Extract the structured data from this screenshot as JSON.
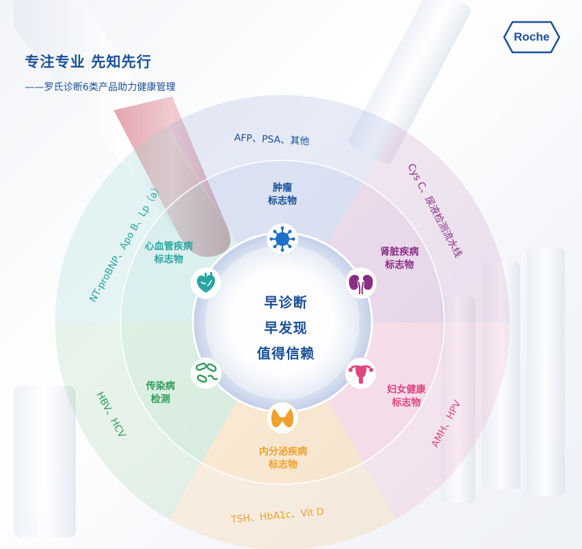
{
  "header": {
    "title": "专注专业 先知先行",
    "subtitle": "——罗氏诊断6类产品助力健康管理"
  },
  "logo": {
    "text": "Roche",
    "color": "#1a4f96"
  },
  "center": {
    "lines": [
      "早诊断",
      "早发现",
      "值得信赖"
    ],
    "color": "#1a4f96"
  },
  "categories": [
    {
      "line1": "肿瘤",
      "line2": "标志物",
      "color": "#1a4f96",
      "icon": "virus-icon"
    },
    {
      "line1": "肾脏疾病",
      "line2": "标志物",
      "color": "#8a2e84",
      "icon": "kidney-icon"
    },
    {
      "line1": "妇女健康",
      "line2": "标志物",
      "color": "#e0457f",
      "icon": "uterus-icon"
    },
    {
      "line1": "内分泌疾病",
      "line2": "标志物",
      "color": "#f0a02c",
      "icon": "thyroid-icon"
    },
    {
      "line1": "传染病",
      "line2": "检测",
      "color": "#2f9a5a",
      "icon": "bacteria-icon"
    },
    {
      "line1": "心血管疾病",
      "line2": "标志物",
      "color": "#2aa5a0",
      "icon": "heart-icon"
    }
  ],
  "outer_labels": {
    "tumor": "AFP、PSA、其他",
    "kidney": "Cys C、尿液检测流水线",
    "women": "AMH、HPV",
    "endocrine": "TSH、HbA1c、Vit D",
    "infectious": "HBV、HCV",
    "cardio": "NT-proBNP、Apo B、Lp（a）"
  }
}
